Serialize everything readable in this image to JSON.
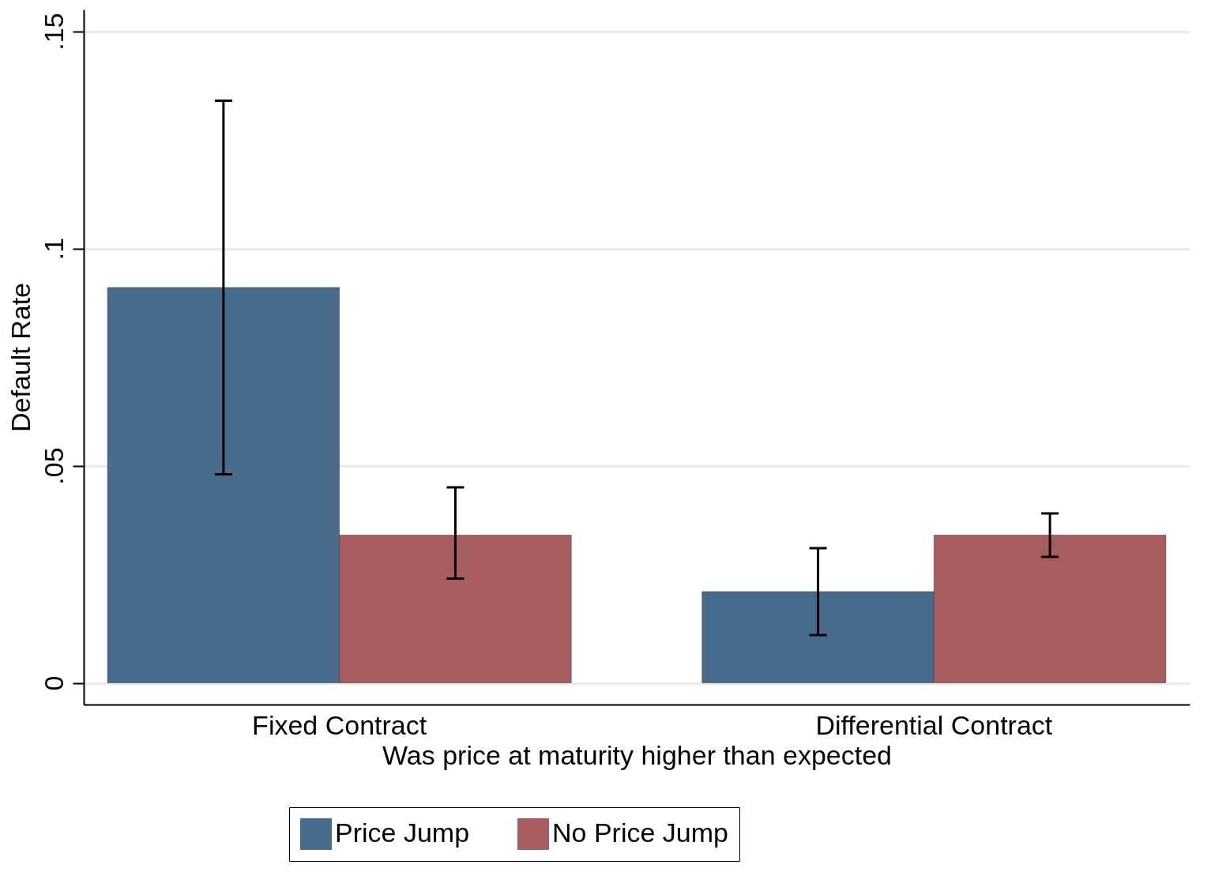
{
  "chart_data": {
    "type": "bar",
    "xlabel": "Was price at maturity higher than expected",
    "ylabel": "Default Rate",
    "categories": [
      "Fixed Contract",
      "Differential Contract"
    ],
    "series": [
      {
        "name": "Price Jump",
        "color": "#486a8b",
        "values": [
          0.091,
          0.021
        ],
        "errors": [
          [
            0.048,
            0.134
          ],
          [
            0.011,
            0.031
          ]
        ]
      },
      {
        "name": "No Price Jump",
        "color": "#a85d60",
        "values": [
          0.034,
          0.034
        ],
        "errors": [
          [
            0.024,
            0.045
          ],
          [
            0.029,
            0.039
          ]
        ]
      }
    ],
    "ylim": [
      -0.005,
      0.155
    ],
    "yticks": [
      0,
      {
        "value": 0.05,
        "label": ".05"
      },
      {
        "value": 0.1,
        "label": ".1"
      },
      {
        "value": 0.15,
        "label": ".15"
      }
    ],
    "grid": "y",
    "legend": "bottom"
  }
}
